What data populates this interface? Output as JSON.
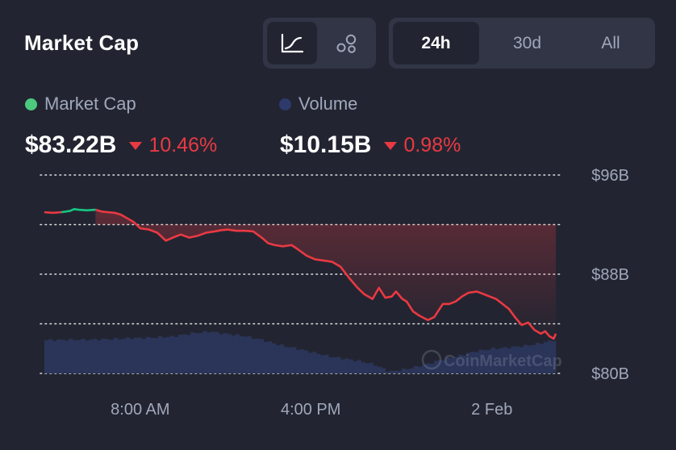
{
  "header": {
    "title": "Market Cap",
    "chart_modes": [
      {
        "label": "",
        "icon": "line-chart-icon",
        "active": true
      },
      {
        "label": "",
        "icon": "bubbles-icon",
        "active": false
      }
    ],
    "ranges": [
      {
        "label": "24h",
        "active": true
      },
      {
        "label": "30d",
        "active": false
      },
      {
        "label": "All",
        "active": false
      }
    ]
  },
  "legend": {
    "market_cap": {
      "label": "Market Cap",
      "color": "#16c784",
      "value": "$83.22B",
      "change": "10.46%"
    },
    "volume": {
      "label": "Volume",
      "color": "#2d3a6b",
      "value": "$10.15B",
      "change": "0.98%"
    }
  },
  "colors": {
    "up": "#16c784",
    "down": "#ea3943",
    "volume": "#2b3559",
    "grid": "#ffffff",
    "background": "#222531"
  },
  "watermark": "CoinMarketCap",
  "chart_data": {
    "type": "line",
    "y_axis": {
      "ticks": [
        "$96B",
        "$88B",
        "$80B"
      ],
      "tick_values": [
        96,
        88,
        80
      ],
      "ylim": [
        80,
        96
      ],
      "gridlines": [
        96,
        92,
        88,
        84,
        80
      ],
      "position": "right"
    },
    "x_axis": {
      "ticks": [
        "8:00 AM",
        "4:00 PM",
        "2 Feb"
      ],
      "tick_hours": [
        4.5,
        12.5,
        21
      ],
      "xlim": [
        0,
        24
      ]
    },
    "series": [
      {
        "name": "Market Cap",
        "unit": "B USD",
        "x": [
          0.0,
          0.4,
          0.8,
          1.0,
          1.2,
          1.4,
          1.6,
          2.0,
          2.4,
          2.7,
          3.0,
          3.3,
          3.6,
          3.9,
          4.2,
          4.5,
          4.9,
          5.3,
          5.7,
          6.1,
          6.4,
          6.8,
          7.2,
          7.6,
          8.0,
          8.3,
          8.6,
          9.0,
          9.4,
          9.8,
          10.2,
          10.5,
          10.8,
          11.2,
          11.6,
          11.9,
          12.3,
          12.7,
          13.1,
          13.5,
          13.9,
          14.3,
          14.7,
          15.0,
          15.4,
          15.7,
          16.0,
          16.3,
          16.5,
          16.8,
          17.0,
          17.3,
          17.6,
          18.0,
          18.3,
          18.7,
          19.0,
          19.3,
          19.6,
          19.9,
          20.3,
          20.6,
          20.9,
          21.2,
          21.5,
          21.8,
          22.1,
          22.4,
          22.7,
          23.0,
          23.3,
          23.5,
          23.7,
          23.9,
          24.0
        ],
        "y": [
          93.0,
          92.95,
          93.0,
          93.05,
          93.1,
          93.25,
          93.2,
          93.15,
          93.2,
          93.05,
          93.0,
          92.95,
          92.8,
          92.5,
          92.2,
          91.7,
          91.6,
          91.35,
          90.7,
          91.0,
          91.2,
          90.95,
          91.1,
          91.35,
          91.45,
          91.55,
          91.6,
          91.5,
          91.5,
          91.45,
          90.95,
          90.5,
          90.35,
          90.25,
          90.35,
          90.0,
          89.5,
          89.2,
          89.1,
          89.0,
          88.6,
          87.7,
          86.9,
          86.4,
          86.0,
          86.9,
          86.1,
          86.2,
          86.6,
          86.0,
          85.8,
          85.0,
          84.65,
          84.3,
          84.55,
          85.6,
          85.6,
          85.8,
          86.2,
          86.5,
          86.6,
          86.4,
          86.2,
          86.0,
          85.6,
          85.2,
          84.5,
          83.9,
          84.1,
          83.5,
          83.2,
          83.4,
          83.0,
          82.8,
          83.2
        ],
        "up_until_index": 8
      },
      {
        "name": "Volume",
        "unit": "B USD (scaled to lower band)",
        "x": [
          0.0,
          1.0,
          2.0,
          3.0,
          4.0,
          5.0,
          6.0,
          7.0,
          7.8,
          8.6,
          9.4,
          10.2,
          11.0,
          11.8,
          12.6,
          13.4,
          14.2,
          14.8,
          15.5,
          16.2,
          17.0,
          17.8,
          18.6,
          19.4,
          20.2,
          21.0,
          21.8,
          22.6,
          23.4,
          24.0
        ],
        "y": [
          0.62,
          0.63,
          0.63,
          0.64,
          0.66,
          0.67,
          0.69,
          0.76,
          0.79,
          0.74,
          0.7,
          0.63,
          0.53,
          0.46,
          0.38,
          0.3,
          0.25,
          0.21,
          0.14,
          0.0,
          0.05,
          0.13,
          0.23,
          0.3,
          0.4,
          0.45,
          0.48,
          0.51,
          0.57,
          0.63
        ]
      }
    ],
    "grid": true,
    "legend_position": "top-left"
  }
}
